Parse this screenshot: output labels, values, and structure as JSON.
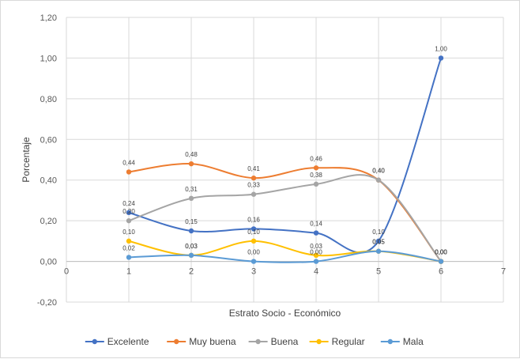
{
  "chart_data": {
    "type": "line",
    "title": "",
    "xlabel": "Estrato Socio - Económico",
    "ylabel": "Porcentaje",
    "xlim": [
      0,
      7
    ],
    "ylim": [
      -0.2,
      1.2
    ],
    "x_ticks": [
      "0",
      "1",
      "2",
      "3",
      "4",
      "5",
      "6",
      "7"
    ],
    "y_ticks": [
      "-0,20",
      "0,00",
      "0,20",
      "0,40",
      "0,60",
      "0,80",
      "1,00",
      "1,20"
    ],
    "grid": true,
    "smooth": true,
    "legend_position": "bottom",
    "x": [
      1,
      2,
      3,
      4,
      5,
      6
    ],
    "series": [
      {
        "name": "Excelente",
        "color": "#4472C4",
        "values": [
          0.24,
          0.15,
          0.16,
          0.14,
          0.1,
          1.0
        ],
        "labels": [
          "0,24",
          "0,15",
          "0,16",
          "0,14",
          "0,10",
          "1,00"
        ]
      },
      {
        "name": "Muy buena",
        "color": "#ED7D31",
        "values": [
          0.44,
          0.48,
          0.41,
          0.46,
          0.4,
          0.0
        ],
        "labels": [
          "0,44",
          "0,48",
          "0,41",
          "0,46",
          "0,40",
          "0,00"
        ]
      },
      {
        "name": "Buena",
        "color": "#A5A5A5",
        "values": [
          0.2,
          0.31,
          0.33,
          0.38,
          0.4,
          0.0
        ],
        "labels": [
          "0,20",
          "0,31",
          "0,33",
          "0,38",
          "0,40",
          "0,00"
        ]
      },
      {
        "name": "Regular",
        "color": "#FFC000",
        "values": [
          0.1,
          0.03,
          0.1,
          0.03,
          0.05,
          0.0
        ],
        "labels": [
          "0,10",
          "0,03",
          "0,10",
          "0,03",
          "0,05",
          "0,00"
        ]
      },
      {
        "name": "Mala",
        "color": "#5B9BD5",
        "values": [
          0.02,
          0.03,
          0.0,
          0.0,
          0.05,
          0.0
        ],
        "labels": [
          "0,02",
          "0,03",
          "0,00",
          "0,00",
          "0,05",
          "0,00"
        ]
      }
    ]
  }
}
